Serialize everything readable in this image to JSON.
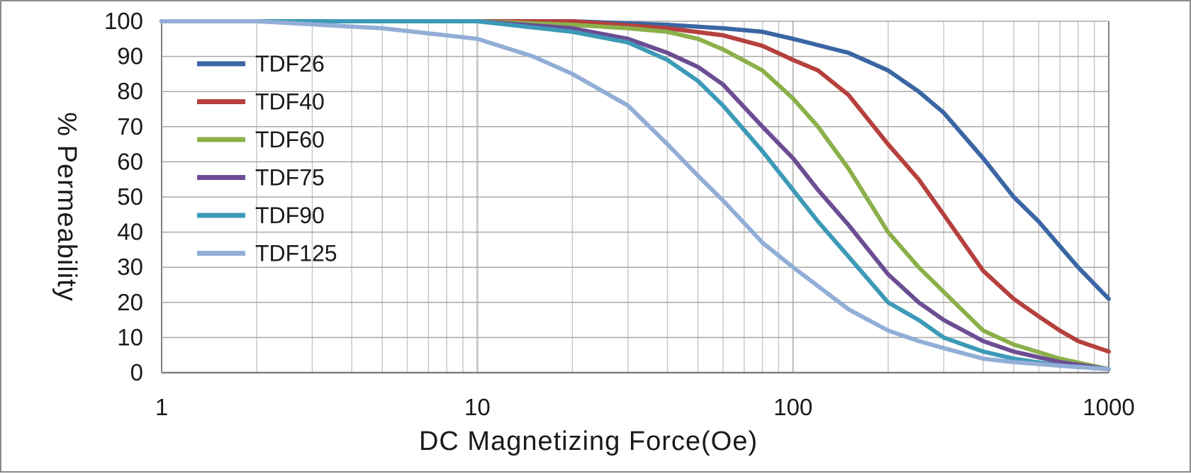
{
  "chart_data": {
    "type": "line",
    "title": "",
    "xlabel": "DC Magnetizing Force(Oe)",
    "ylabel": "% Permeability",
    "xscale": "log",
    "xlim": [
      1,
      1000
    ],
    "ylim": [
      0,
      100
    ],
    "x_ticks": [
      "1",
      "10",
      "100",
      "1000"
    ],
    "y_ticks": [
      "0",
      "10",
      "20",
      "30",
      "40",
      "50",
      "60",
      "70",
      "80",
      "90",
      "100"
    ],
    "grid": true,
    "legend_position": "top-left",
    "series": [
      {
        "name": "TDF26",
        "color": "#3a66a3",
        "x": [
          1,
          10,
          20,
          40,
          60,
          80,
          100,
          150,
          200,
          250,
          300,
          400,
          500,
          600,
          700,
          800,
          1000
        ],
        "y": [
          100,
          100,
          100,
          99,
          98,
          97,
          95,
          91,
          86,
          80,
          74,
          61,
          50,
          43,
          36,
          30,
          21
        ]
      },
      {
        "name": "TDF40",
        "color": "#b5403d",
        "x": [
          1,
          10,
          20,
          40,
          60,
          80,
          100,
          120,
          150,
          200,
          250,
          300,
          400,
          500,
          600,
          700,
          800,
          1000
        ],
        "y": [
          100,
          100,
          100,
          98,
          96,
          93,
          89,
          86,
          79,
          65,
          55,
          45,
          29,
          21,
          16,
          12,
          9,
          6
        ]
      },
      {
        "name": "TDF60",
        "color": "#8bb04a",
        "x": [
          1,
          10,
          20,
          30,
          40,
          50,
          60,
          80,
          100,
          120,
          150,
          200,
          250,
          300,
          400,
          500,
          700,
          1000
        ],
        "y": [
          100,
          100,
          99,
          98,
          97,
          95,
          92,
          86,
          78,
          70,
          58,
          40,
          30,
          23,
          12,
          8,
          4,
          1
        ]
      },
      {
        "name": "TDF75",
        "color": "#6c4d93",
        "x": [
          1,
          10,
          20,
          30,
          40,
          50,
          60,
          80,
          100,
          120,
          150,
          200,
          250,
          300,
          400,
          500,
          700,
          1000
        ],
        "y": [
          100,
          100,
          98,
          95,
          91,
          87,
          82,
          70,
          61,
          52,
          42,
          28,
          20,
          15,
          9,
          6,
          3,
          1
        ]
      },
      {
        "name": "TDF90",
        "color": "#3c9ab7",
        "x": [
          1,
          10,
          20,
          30,
          40,
          50,
          60,
          80,
          100,
          120,
          150,
          200,
          250,
          300,
          400,
          500,
          700,
          1000
        ],
        "y": [
          100,
          100,
          97,
          94,
          89,
          83,
          76,
          63,
          52,
          43,
          33,
          20,
          15,
          10,
          6,
          4,
          2,
          1
        ]
      },
      {
        "name": "TDF125",
        "color": "#92aed7",
        "x": [
          1,
          2,
          5,
          10,
          15,
          20,
          30,
          40,
          50,
          60,
          80,
          100,
          150,
          200,
          250,
          300,
          400,
          500,
          700,
          1000
        ],
        "y": [
          100,
          100,
          98,
          95,
          90,
          85,
          76,
          65,
          56,
          49,
          37,
          30,
          18,
          12,
          9,
          7,
          4,
          3,
          2,
          1
        ]
      }
    ]
  }
}
